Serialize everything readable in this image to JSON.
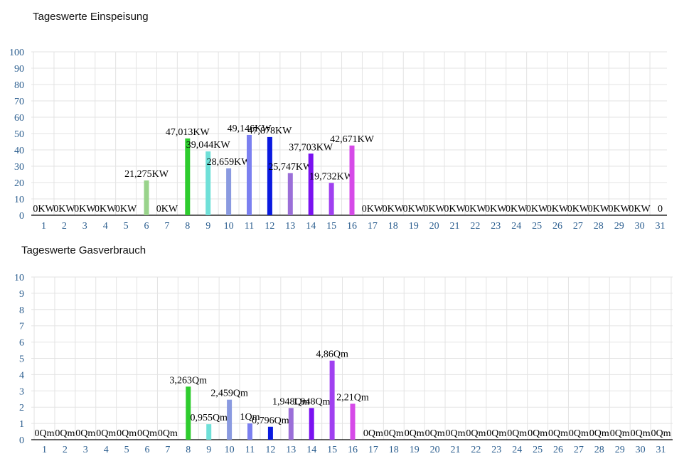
{
  "chart_data": [
    {
      "type": "bar",
      "title": "Tageswerte Einspeisung",
      "categories": [
        "1",
        "2",
        "3",
        "4",
        "5",
        "6",
        "7",
        "8",
        "9",
        "10",
        "11",
        "12",
        "13",
        "14",
        "15",
        "16",
        "17",
        "18",
        "19",
        "20",
        "21",
        "22",
        "23",
        "24",
        "25",
        "26",
        "27",
        "28",
        "29",
        "30",
        "31"
      ],
      "values": [
        0,
        0,
        0,
        0,
        0,
        21.275,
        0,
        47.013,
        39.044,
        28.659,
        49.146,
        47.878,
        25.747,
        37.703,
        19.732,
        42.671,
        0,
        0,
        0,
        0,
        0,
        0,
        0,
        0,
        0,
        0,
        0,
        0,
        0,
        0,
        0
      ],
      "labels": [
        "0KW",
        "0KW",
        "0KW",
        "0KW",
        "0KW",
        "21,275KW",
        "0KW",
        "47,013KW",
        "39,044KW",
        "28,659KW",
        "49,146KW",
        "47,878KW",
        "25,747KW",
        "37,703KW",
        "19,732KW",
        "42,671KW",
        "0KW",
        "0KW",
        "0KW",
        "0KW",
        "0KW",
        "0KW",
        "0KW",
        "0KW",
        "0KW",
        "0KW",
        "0KW",
        "0KW",
        "0KW",
        "0KW",
        "0"
      ],
      "colors": [
        "#999999",
        "#999999",
        "#999999",
        "#999999",
        "#999999",
        "#99d38b",
        "#999999",
        "#2ecc2e",
        "#6fe0d8",
        "#8a9ae0",
        "#7b80f0",
        "#0a1ae0",
        "#9b6fd8",
        "#7a12f0",
        "#a040f0",
        "#d64ae8",
        "#999999",
        "#999999",
        "#999999",
        "#999999",
        "#999999",
        "#999999",
        "#999999",
        "#999999",
        "#999999",
        "#999999",
        "#999999",
        "#999999",
        "#999999",
        "#999999",
        "#999999"
      ],
      "yticks": [
        "0",
        "10",
        "20",
        "30",
        "40",
        "50",
        "60",
        "70",
        "80",
        "90",
        "100"
      ],
      "ylim": [
        0,
        100
      ],
      "xlabel": "",
      "ylabel": "",
      "grid": true
    },
    {
      "type": "bar",
      "title": "Tageswerte Gasverbrauch",
      "categories": [
        "1",
        "2",
        "3",
        "4",
        "5",
        "6",
        "7",
        "8",
        "9",
        "10",
        "11",
        "12",
        "13",
        "14",
        "15",
        "16",
        "17",
        "18",
        "19",
        "20",
        "21",
        "22",
        "23",
        "24",
        "25",
        "26",
        "27",
        "28",
        "29",
        "30",
        "31"
      ],
      "values": [
        0,
        0,
        0,
        0,
        0,
        0,
        0,
        3.263,
        0.955,
        2.459,
        1,
        0.796,
        1.948,
        1.948,
        4.86,
        2.21,
        0,
        0,
        0,
        0,
        0,
        0,
        0,
        0,
        0,
        0,
        0,
        0,
        0,
        0,
        0
      ],
      "labels": [
        "0Qm",
        "0Qm",
        "0Qm",
        "0Qm",
        "0Qm",
        "0Qm",
        "0Qm",
        "3,263Qm",
        "0,955Qm",
        "2,459Qm",
        "1Qm",
        "0,796Qm",
        "1,948Qm",
        "1,948Qm",
        "4,86Qm",
        "2,21Qm",
        "0Qm",
        "0Qm",
        "0Qm",
        "0Qm",
        "0Qm",
        "0Qm",
        "0Qm",
        "0Qm",
        "0Qm",
        "0Qm",
        "0Qm",
        "0Qm",
        "0Qm",
        "0Qm",
        "0Qm"
      ],
      "colors": [
        "#999999",
        "#999999",
        "#999999",
        "#999999",
        "#999999",
        "#999999",
        "#999999",
        "#2ecc2e",
        "#6fe0d8",
        "#8a9ae0",
        "#7b80f0",
        "#0a1ae0",
        "#9b6fd8",
        "#7a12f0",
        "#a040f0",
        "#d64ae8",
        "#999999",
        "#999999",
        "#999999",
        "#999999",
        "#999999",
        "#999999",
        "#999999",
        "#999999",
        "#999999",
        "#999999",
        "#999999",
        "#999999",
        "#999999",
        "#999999",
        "#999999"
      ],
      "yticks": [
        "0",
        "1",
        "2",
        "3",
        "4",
        "5",
        "6",
        "7",
        "8",
        "9",
        "10"
      ],
      "ylim": [
        0,
        10
      ],
      "xlabel": "",
      "ylabel": "",
      "grid": true
    }
  ]
}
